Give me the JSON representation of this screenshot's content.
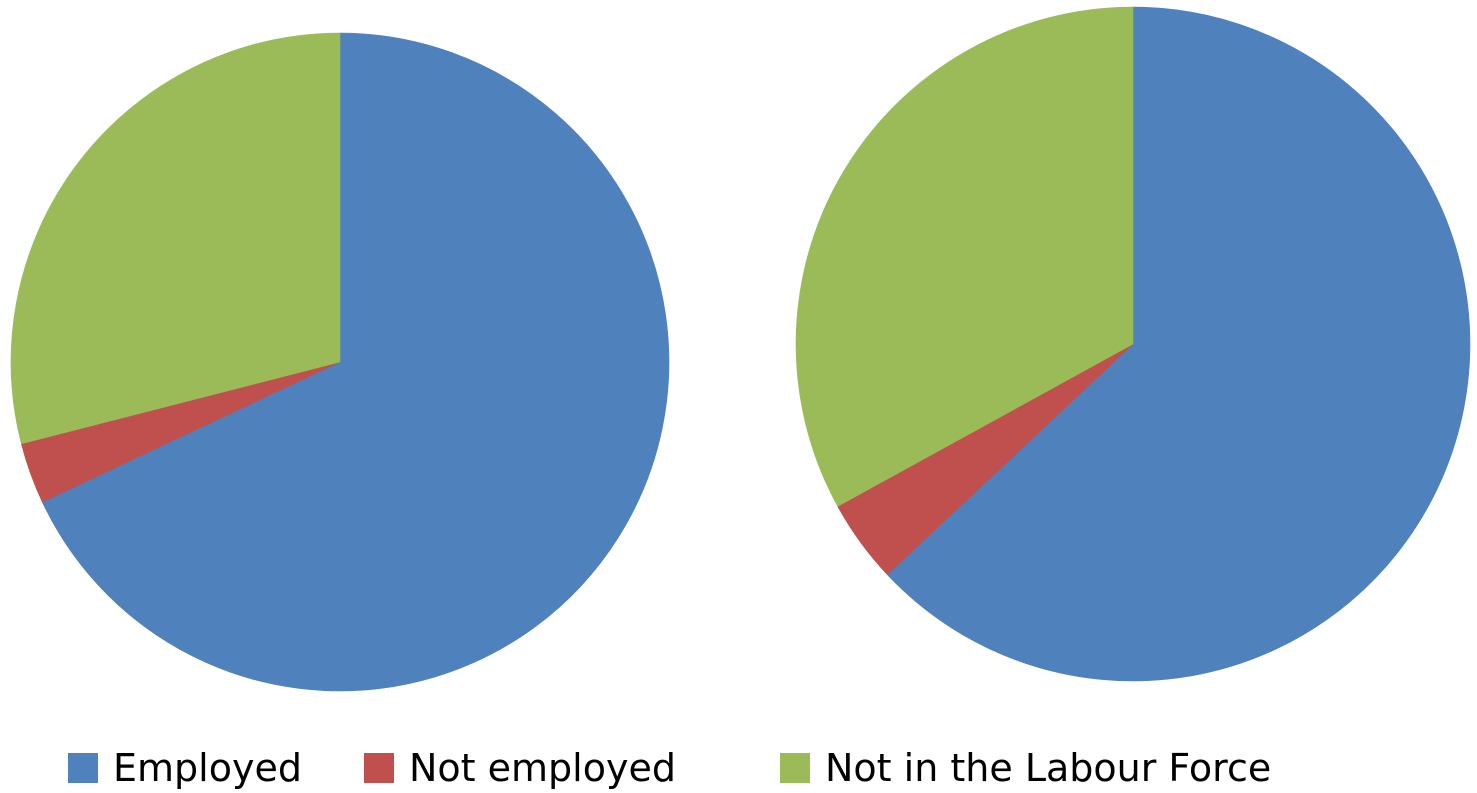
{
  "chart_data": [
    {
      "type": "pie",
      "title": "",
      "categories": [
        "Employed",
        "Not employed",
        "Not in the Labour Force"
      ],
      "values": [
        68.0,
        3.0,
        29.0
      ],
      "colors": [
        "#4F81BD",
        "#C0504D",
        "#9BBB59"
      ],
      "start_angle": "12 o'clock",
      "direction": "clockwise"
    },
    {
      "type": "pie",
      "title": "",
      "categories": [
        "Employed",
        "Not employed",
        "Not in the Labour Force"
      ],
      "values": [
        63.0,
        4.0,
        33.0
      ],
      "colors": [
        "#4F81BD",
        "#C0504D",
        "#9BBB59"
      ],
      "start_angle": "12 o'clock",
      "direction": "clockwise"
    }
  ],
  "legend": {
    "position": "bottom",
    "items": [
      {
        "label": "Employed",
        "color": "#4F81BD"
      },
      {
        "label": "Not employed",
        "color": "#C0504D"
      },
      {
        "label": "Not in the Labour Force",
        "color": "#9BBB59"
      }
    ]
  }
}
